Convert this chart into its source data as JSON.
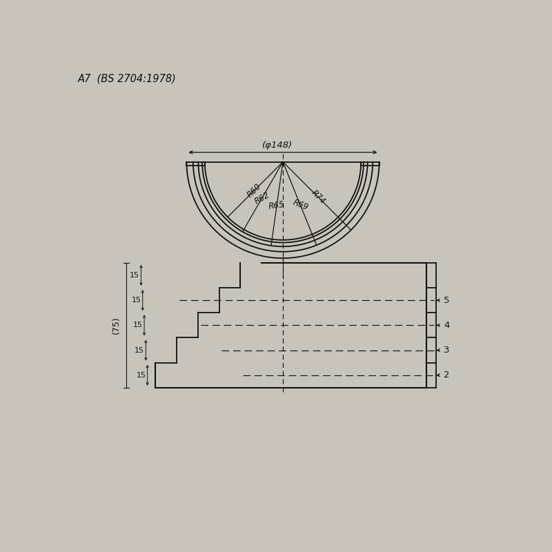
{
  "title": "A7  (BS 2704:1978)",
  "bg_color": "#c8c4bc",
  "line_color": "#111111",
  "radii": [
    60,
    62,
    65,
    69,
    74
  ],
  "radius_labels": [
    "R60",
    "R62",
    "R65",
    "R69",
    "R74"
  ],
  "diameter_label": "(φ148)",
  "total_height_label": "(75)",
  "step_labels": [
    "5",
    "4",
    "3",
    "2"
  ],
  "step_dim": "15"
}
